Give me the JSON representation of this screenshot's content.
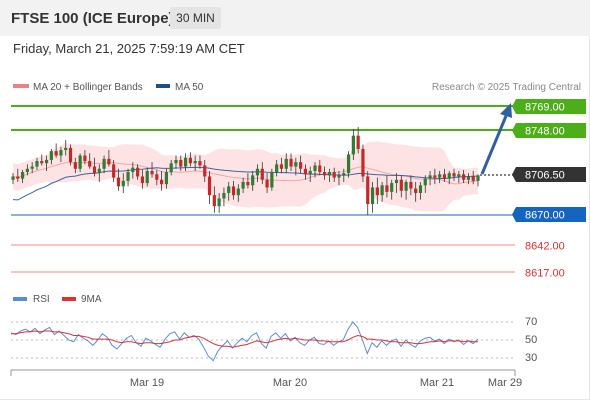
{
  "header": {
    "title": "FTSE 100 (ICE Europe)",
    "timeframe": "30 MIN",
    "datetime": "Friday, March 21, 2025 7:59:19 AM CET"
  },
  "legend": {
    "bollinger": {
      "label": "MA 20 + Bollinger Bands",
      "color": "#f08080"
    },
    "ma50": {
      "label": "MA 50",
      "color": "#1f4e8c"
    },
    "credit": "Research © 2025 Trading Central"
  },
  "rsi_legend": {
    "rsi": {
      "label": "RSI",
      "color": "#5b8dd6"
    },
    "ma9": {
      "label": "9MA",
      "color": "#e03030"
    }
  },
  "colors": {
    "resistance": "#4caf1a",
    "support_blue": "#1565c0",
    "support_red": "#f08a8a",
    "candle_up": "#2e7d32",
    "candle_down": "#c62828",
    "band_fill": "#fde3e3",
    "arrow": "#2f5f9e",
    "current": "#333333"
  },
  "chart_data": {
    "type": "candlestick",
    "instrument": "FTSE 100 (ICE Europe)",
    "interval": "30 MIN",
    "x_ticks": [
      "Mar 19",
      "Mar 20",
      "Mar 21",
      "Mar 29"
    ],
    "levels": [
      {
        "value": "8769.00",
        "kind": "resistance"
      },
      {
        "value": "8748.00",
        "kind": "resistance"
      },
      {
        "value": "8706.50",
        "kind": "current"
      },
      {
        "value": "8670.00",
        "kind": "pivot"
      },
      {
        "value": "8642.00",
        "kind": "support"
      },
      {
        "value": "8617.00",
        "kind": "support"
      }
    ],
    "arrow": {
      "from": 8706.5,
      "to": 8769.0
    },
    "price_range": [
      8605,
      8780
    ],
    "candles": [
      [
        8702,
        8708,
        8698,
        8705
      ],
      [
        8705,
        8712,
        8700,
        8703
      ],
      [
        8703,
        8711,
        8699,
        8709
      ],
      [
        8709,
        8716,
        8706,
        8712
      ],
      [
        8712,
        8718,
        8708,
        8714
      ],
      [
        8714,
        8722,
        8711,
        8719
      ],
      [
        8719,
        8725,
        8715,
        8717
      ],
      [
        8717,
        8724,
        8710,
        8720
      ],
      [
        8720,
        8730,
        8716,
        8728
      ],
      [
        8728,
        8735,
        8722,
        8724
      ],
      [
        8724,
        8732,
        8718,
        8729
      ],
      [
        8729,
        8738,
        8724,
        8731
      ],
      [
        8731,
        8734,
        8715,
        8718
      ],
      [
        8718,
        8722,
        8708,
        8712
      ],
      [
        8712,
        8726,
        8709,
        8724
      ],
      [
        8724,
        8729,
        8716,
        8719
      ],
      [
        8719,
        8726,
        8712,
        8714
      ],
      [
        8714,
        8722,
        8705,
        8708
      ],
      [
        8708,
        8716,
        8700,
        8712
      ],
      [
        8712,
        8724,
        8708,
        8721
      ],
      [
        8721,
        8729,
        8714,
        8716
      ],
      [
        8716,
        8720,
        8700,
        8704
      ],
      [
        8704,
        8712,
        8692,
        8696
      ],
      [
        8696,
        8708,
        8690,
        8701
      ],
      [
        8701,
        8712,
        8696,
        8709
      ],
      [
        8709,
        8718,
        8703,
        8713
      ],
      [
        8713,
        8716,
        8702,
        8705
      ],
      [
        8705,
        8711,
        8694,
        8699
      ],
      [
        8699,
        8713,
        8696,
        8710
      ],
      [
        8710,
        8718,
        8704,
        8707
      ],
      [
        8707,
        8711,
        8697,
        8702
      ],
      [
        8702,
        8710,
        8692,
        8698
      ],
      [
        8698,
        8712,
        8694,
        8709
      ],
      [
        8709,
        8720,
        8706,
        8717
      ],
      [
        8717,
        8724,
        8712,
        8720
      ],
      [
        8720,
        8724,
        8710,
        8714
      ],
      [
        8714,
        8726,
        8710,
        8722
      ],
      [
        8722,
        8727,
        8714,
        8717
      ],
      [
        8717,
        8724,
        8710,
        8719
      ],
      [
        8719,
        8724,
        8712,
        8715
      ],
      [
        8715,
        8720,
        8700,
        8705
      ],
      [
        8705,
        8710,
        8680,
        8688
      ],
      [
        8688,
        8696,
        8672,
        8678
      ],
      [
        8678,
        8690,
        8672,
        8685
      ],
      [
        8685,
        8695,
        8678,
        8690
      ],
      [
        8690,
        8700,
        8683,
        8696
      ],
      [
        8696,
        8701,
        8684,
        8688
      ],
      [
        8688,
        8698,
        8682,
        8694
      ],
      [
        8694,
        8704,
        8690,
        8700
      ],
      [
        8700,
        8708,
        8694,
        8697
      ],
      [
        8697,
        8710,
        8692,
        8706
      ],
      [
        8706,
        8716,
        8700,
        8712
      ],
      [
        8712,
        8718,
        8698,
        8702
      ],
      [
        8702,
        8708,
        8690,
        8695
      ],
      [
        8695,
        8712,
        8692,
        8709
      ],
      [
        8709,
        8720,
        8705,
        8716
      ],
      [
        8716,
        8722,
        8708,
        8712
      ],
      [
        8712,
        8726,
        8708,
        8721
      ],
      [
        8721,
        8726,
        8710,
        8714
      ],
      [
        8714,
        8722,
        8706,
        8718
      ],
      [
        8718,
        8724,
        8708,
        8712
      ],
      [
        8712,
        8716,
        8702,
        8707
      ],
      [
        8707,
        8714,
        8700,
        8710
      ],
      [
        8710,
        8718,
        8704,
        8715
      ],
      [
        8715,
        8720,
        8706,
        8709
      ],
      [
        8709,
        8714,
        8702,
        8706
      ],
      [
        8706,
        8712,
        8700,
        8709
      ],
      [
        8709,
        8713,
        8700,
        8704
      ],
      [
        8704,
        8710,
        8697,
        8706
      ],
      [
        8706,
        8712,
        8700,
        8708
      ],
      [
        8708,
        8728,
        8704,
        8725
      ],
      [
        8725,
        8748,
        8720,
        8742
      ],
      [
        8742,
        8750,
        8726,
        8730
      ],
      [
        8730,
        8734,
        8700,
        8705
      ],
      [
        8705,
        8710,
        8670,
        8680
      ],
      [
        8680,
        8700,
        8672,
        8695
      ],
      [
        8695,
        8704,
        8680,
        8688
      ],
      [
        8688,
        8700,
        8682,
        8697
      ],
      [
        8697,
        8706,
        8686,
        8691
      ],
      [
        8691,
        8702,
        8684,
        8699
      ],
      [
        8699,
        8708,
        8690,
        8702
      ],
      [
        8702,
        8706,
        8686,
        8692
      ],
      [
        8692,
        8702,
        8684,
        8700
      ],
      [
        8700,
        8706,
        8688,
        8694
      ],
      [
        8694,
        8700,
        8682,
        8690
      ],
      [
        8690,
        8700,
        8684,
        8697
      ],
      [
        8697,
        8706,
        8690,
        8703
      ],
      [
        8703,
        8710,
        8697,
        8706
      ],
      [
        8706,
        8712,
        8698,
        8704
      ],
      [
        8704,
        8710,
        8699,
        8707
      ],
      [
        8707,
        8712,
        8700,
        8703
      ],
      [
        8703,
        8710,
        8698,
        8708
      ],
      [
        8708,
        8712,
        8701,
        8705
      ],
      [
        8705,
        8710,
        8699,
        8707
      ],
      [
        8707,
        8711,
        8699,
        8702
      ],
      [
        8702,
        8708,
        8698,
        8705
      ],
      [
        8705,
        8710,
        8698,
        8701
      ],
      [
        8701,
        8707,
        8696,
        8706
      ]
    ],
    "rsi_axis": {
      "ticks": [
        70,
        50,
        30
      ],
      "range": [
        20,
        80
      ]
    },
    "rsi_values": [
      58,
      56,
      60,
      62,
      59,
      63,
      57,
      61,
      64,
      56,
      60,
      55,
      50,
      48,
      56,
      52,
      49,
      44,
      50,
      57,
      53,
      44,
      40,
      46,
      52,
      55,
      47,
      43,
      52,
      49,
      45,
      42,
      51,
      57,
      59,
      51,
      58,
      53,
      55,
      51,
      42,
      32,
      27,
      38,
      44,
      49,
      41,
      47,
      52,
      48,
      55,
      58,
      46,
      41,
      54,
      58,
      52,
      57,
      49,
      53,
      47,
      44,
      50,
      53,
      46,
      45,
      49,
      44,
      48,
      50,
      62,
      70,
      64,
      50,
      35,
      47,
      42,
      49,
      44,
      49,
      51,
      43,
      50,
      45,
      42,
      49,
      52,
      53,
      49,
      51,
      46,
      51,
      48,
      50,
      45,
      49,
      46,
      51
    ],
    "rsi_ma_values": [
      57,
      57,
      58,
      59,
      59,
      60,
      59,
      60,
      60,
      59,
      59,
      58,
      57,
      55,
      55,
      54,
      53,
      51,
      51,
      51,
      51,
      50,
      48,
      47,
      48,
      48,
      47,
      46,
      47,
      47,
      46,
      46,
      47,
      48,
      50,
      50,
      52,
      53,
      54,
      54,
      52,
      49,
      46,
      44,
      43,
      43,
      42,
      43,
      44,
      45,
      47,
      49,
      48,
      47,
      48,
      50,
      51,
      52,
      51,
      52,
      51,
      50,
      50,
      50,
      49,
      49,
      48,
      48,
      48,
      48,
      50,
      53,
      55,
      54,
      51,
      51,
      50,
      50,
      49,
      48,
      48,
      47,
      47,
      47,
      46,
      46,
      47,
      48,
      48,
      49,
      48,
      49,
      49,
      49,
      48,
      49,
      48,
      48
    ]
  },
  "x_axis_labels": [
    "Mar 19",
    "Mar 20",
    "Mar 21",
    "Mar 29"
  ]
}
